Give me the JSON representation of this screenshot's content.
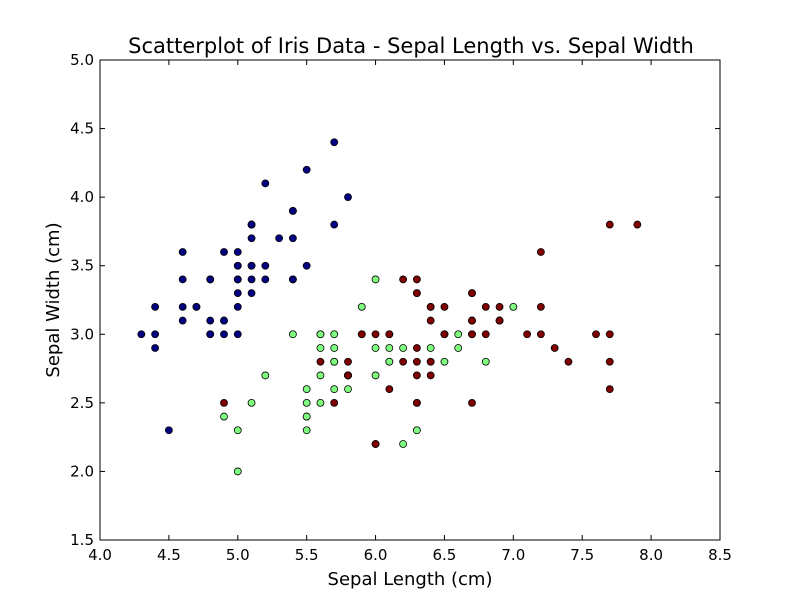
{
  "chart_data": {
    "type": "scatter",
    "title": "Scatterplot of Iris Data - Sepal Length vs. Sepal Width",
    "xlabel": "Sepal Length (cm)",
    "ylabel": "Sepal Width (cm)",
    "xlim": [
      4.0,
      8.5
    ],
    "ylim": [
      1.5,
      5.0
    ],
    "xticks": [
      "4.0",
      "4.5",
      "5.0",
      "5.5",
      "6.0",
      "6.5",
      "7.0",
      "7.5",
      "8.0",
      "8.5"
    ],
    "yticks": [
      "1.5",
      "2.0",
      "2.5",
      "3.0",
      "3.5",
      "4.0",
      "4.5",
      "5.0"
    ],
    "grid": false,
    "legend": "none",
    "series": [
      {
        "color": "#000080",
        "x": [
          5.1,
          4.9,
          4.7,
          4.6,
          5.0,
          5.4,
          4.6,
          5.0,
          4.4,
          4.9,
          5.4,
          4.8,
          4.8,
          4.3,
          5.8,
          5.7,
          5.4,
          5.1,
          5.7,
          5.1,
          5.4,
          5.1,
          4.6,
          5.1,
          4.8,
          5.0,
          5.0,
          5.2,
          5.2,
          4.7,
          4.8,
          5.4,
          5.2,
          5.5,
          4.9,
          5.0,
          5.5,
          4.9,
          4.4,
          5.1,
          5.0,
          4.5,
          4.4,
          5.0,
          5.1,
          4.8,
          5.1,
          4.6,
          5.3,
          5.0
        ],
        "y": [
          3.5,
          3.0,
          3.2,
          3.1,
          3.6,
          3.9,
          3.4,
          3.4,
          2.9,
          3.1,
          3.7,
          3.4,
          3.0,
          3.0,
          4.0,
          4.4,
          3.9,
          3.5,
          3.8,
          3.8,
          3.4,
          3.7,
          3.6,
          3.3,
          3.4,
          3.0,
          3.4,
          3.5,
          3.4,
          3.2,
          3.1,
          3.4,
          4.1,
          4.2,
          3.1,
          3.2,
          3.5,
          3.6,
          3.0,
          3.4,
          3.5,
          2.3,
          3.2,
          3.5,
          3.8,
          3.0,
          3.8,
          3.2,
          3.7,
          3.3
        ]
      },
      {
        "color": "#7fff7f",
        "x": [
          7.0,
          6.4,
          6.9,
          5.5,
          6.5,
          5.7,
          6.3,
          4.9,
          6.6,
          5.2,
          5.0,
          5.9,
          6.0,
          6.1,
          5.6,
          6.7,
          5.6,
          5.8,
          6.2,
          5.6,
          5.9,
          6.1,
          6.3,
          6.1,
          6.4,
          6.6,
          6.8,
          6.7,
          6.0,
          5.7,
          5.5,
          5.5,
          5.8,
          6.0,
          5.4,
          6.0,
          6.7,
          6.3,
          5.6,
          5.5,
          5.5,
          6.1,
          5.8,
          5.0,
          5.6,
          5.7,
          5.7,
          6.2,
          5.1,
          5.7
        ],
        "y": [
          3.2,
          3.2,
          3.1,
          2.3,
          2.8,
          2.8,
          3.3,
          2.4,
          2.9,
          2.7,
          2.0,
          3.0,
          2.2,
          2.9,
          2.9,
          3.1,
          3.0,
          2.7,
          2.2,
          2.5,
          3.2,
          2.8,
          2.5,
          2.8,
          2.9,
          3.0,
          2.8,
          3.0,
          2.9,
          2.6,
          2.4,
          2.4,
          2.7,
          2.7,
          3.0,
          3.4,
          3.1,
          2.3,
          3.0,
          2.5,
          2.6,
          3.0,
          2.6,
          2.3,
          2.7,
          3.0,
          2.9,
          2.9,
          2.5,
          2.8
        ]
      },
      {
        "color": "#800000",
        "x": [
          6.3,
          5.8,
          7.1,
          6.3,
          6.5,
          7.6,
          4.9,
          7.3,
          6.7,
          7.2,
          6.5,
          6.4,
          6.8,
          5.7,
          5.8,
          6.4,
          6.5,
          7.7,
          7.7,
          6.0,
          6.9,
          5.6,
          7.7,
          6.3,
          6.7,
          7.2,
          6.2,
          6.1,
          6.4,
          7.2,
          7.4,
          7.9,
          6.4,
          6.3,
          6.1,
          7.7,
          6.3,
          6.4,
          6.0,
          6.9,
          6.7,
          6.9,
          5.8,
          6.8,
          6.7,
          6.7,
          6.3,
          6.5,
          6.2,
          5.9
        ],
        "y": [
          3.3,
          2.7,
          3.0,
          2.9,
          3.0,
          3.0,
          2.5,
          2.9,
          2.5,
          3.6,
          3.2,
          2.7,
          3.0,
          2.5,
          2.8,
          3.2,
          3.0,
          3.8,
          2.6,
          2.2,
          3.2,
          2.8,
          2.8,
          2.7,
          3.3,
          3.2,
          2.8,
          3.0,
          2.8,
          3.0,
          2.8,
          3.8,
          2.8,
          2.8,
          2.6,
          3.0,
          3.4,
          3.1,
          3.0,
          3.1,
          3.1,
          3.1,
          2.7,
          3.2,
          3.3,
          3.0,
          2.5,
          3.0,
          3.4,
          3.0
        ]
      }
    ]
  }
}
